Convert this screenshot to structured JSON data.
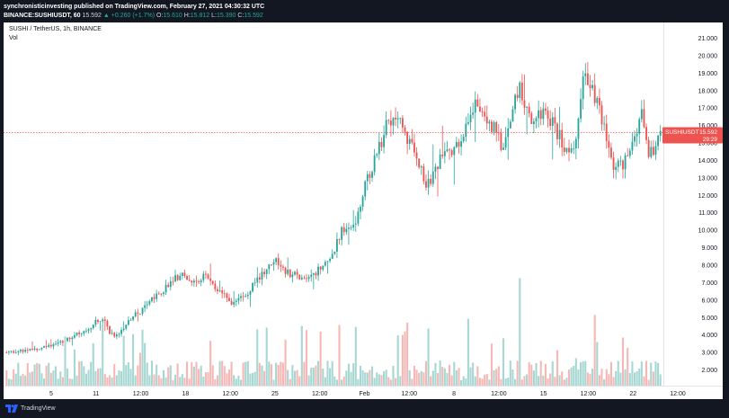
{
  "header": {
    "publisher_line": "synchronisticinvesting published on TradingView.com, February 27, 2021 04:30:32 UTC",
    "symbol": "BINANCE:SUSHIUSDT, 60",
    "last": "15.592",
    "change": "▲ +0.260 (+1.7%)",
    "o_label": "O:",
    "o_value": "15.610",
    "h_label": "H:",
    "h_value": "15.812",
    "l_label": "L:",
    "l_value": "15.390",
    "c_label": "C:",
    "c_value": "15.592"
  },
  "legend": {
    "title": "SUSHI / TetherUS, 1h, BINANCE",
    "vol": "Vol"
  },
  "price_tag": {
    "symbol": "SUSHIUSDT",
    "price": "15.592",
    "countdown": "29:29"
  },
  "footer": {
    "brand": "TradingView"
  },
  "colors": {
    "up": "#26a69a",
    "down": "#ef5350",
    "vol_up": "#a7d7d2",
    "vol_down": "#f5b8b6",
    "price_line": "#ef5350",
    "frame": "#131722"
  },
  "chart_data": {
    "type": "candlestick",
    "x_tick_labels": [
      "5",
      "11",
      "12:00",
      "18",
      "12:00",
      "25",
      "12:00",
      "Feb",
      "12:00",
      "8",
      "12:00",
      "15",
      "12:00",
      "22",
      "12:00"
    ],
    "y_tick_labels": [
      "2.000",
      "3.000",
      "4.000",
      "5.000",
      "6.000",
      "7.000",
      "8.000",
      "9.000",
      "10.000",
      "11.000",
      "12.000",
      "13.000",
      "14.000",
      "15.000",
      "16.000",
      "17.000",
      "18.000",
      "19.000",
      "20.000",
      "21.000"
    ],
    "ylim": [
      1.1,
      21.9
    ],
    "last_price": 15.592,
    "price_path": [
      [
        0,
        3.0
      ],
      [
        3,
        3.2
      ],
      [
        5,
        3.3
      ],
      [
        7,
        3.6
      ],
      [
        9,
        4.0
      ],
      [
        11,
        4.5
      ],
      [
        12.5,
        5.0
      ],
      [
        13.5,
        4.2
      ],
      [
        14.5,
        3.9
      ],
      [
        16,
        4.8
      ],
      [
        18,
        5.6
      ],
      [
        20,
        6.4
      ],
      [
        22,
        7.2
      ],
      [
        23,
        7.5
      ],
      [
        24,
        7.0
      ],
      [
        26,
        7.4
      ],
      [
        27,
        6.8
      ],
      [
        28.5,
        6.3
      ],
      [
        29.5,
        5.7
      ],
      [
        31,
        6.2
      ],
      [
        32.5,
        7.0
      ],
      [
        34,
        7.8
      ],
      [
        35,
        8.4
      ],
      [
        36,
        7.9
      ],
      [
        37,
        7.5
      ],
      [
        38.5,
        7.3
      ],
      [
        39.5,
        7.2
      ],
      [
        40.5,
        7.6
      ],
      [
        42,
        8.3
      ],
      [
        43,
        9.0
      ],
      [
        44,
        10.2
      ],
      [
        45,
        10.0
      ],
      [
        46,
        11.0
      ],
      [
        47,
        12.8
      ],
      [
        48,
        13.8
      ],
      [
        49,
        15.0
      ],
      [
        49.5,
        16.1
      ],
      [
        50.5,
        16.4
      ],
      [
        51.5,
        16.0
      ],
      [
        52.5,
        15.2
      ],
      [
        53.5,
        14.2
      ],
      [
        54.5,
        13.2
      ],
      [
        55,
        12.5
      ],
      [
        56,
        13.5
      ],
      [
        57,
        14.3
      ],
      [
        58.5,
        14.4
      ],
      [
        59.5,
        15.2
      ],
      [
        60.5,
        16.2
      ],
      [
        61.5,
        17.3
      ],
      [
        62.5,
        16.7
      ],
      [
        63.5,
        16.0
      ],
      [
        64.5,
        15.2
      ],
      [
        65,
        14.5
      ],
      [
        66,
        16.8
      ],
      [
        67,
        18.3
      ],
      [
        68,
        16.8
      ],
      [
        69,
        16.0
      ],
      [
        70,
        16.8
      ],
      [
        71,
        16.4
      ],
      [
        72,
        15.6
      ],
      [
        73,
        14.8
      ],
      [
        74,
        14.4
      ],
      [
        75,
        17.0
      ],
      [
        75.5,
        19.6
      ],
      [
        76.5,
        18.0
      ],
      [
        77.5,
        16.8
      ],
      [
        78.5,
        15.2
      ],
      [
        79.5,
        13.5
      ],
      [
        80.5,
        13.8
      ],
      [
        81.5,
        14.2
      ],
      [
        82.5,
        15.8
      ],
      [
        83,
        16.8
      ],
      [
        84,
        14.3
      ],
      [
        85,
        14.9
      ],
      [
        85.5,
        15.6
      ]
    ],
    "volume_scale_note": "relative",
    "grid": false,
    "legend_position": "top-left"
  }
}
